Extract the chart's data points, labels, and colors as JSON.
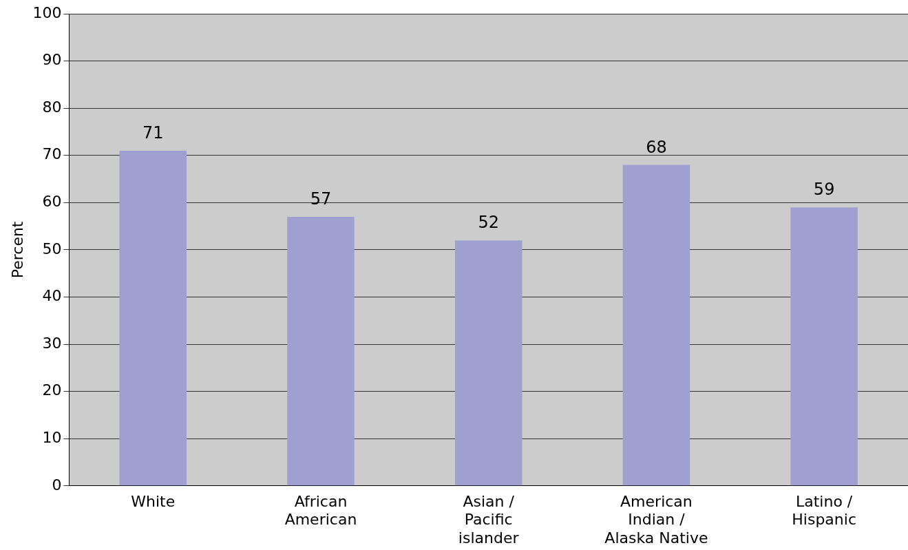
{
  "chart_data": {
    "type": "bar",
    "ylabel": "Percent",
    "categories": [
      "White",
      "African American",
      "Asian / Pacific islander",
      "American Indian / Alaska Native",
      "Latino / Hispanic"
    ],
    "values": [
      71,
      57,
      52,
      68,
      59
    ],
    "color": "#a0a0d0",
    "ylim": [
      0,
      100
    ],
    "yticks": [
      0,
      10,
      20,
      30,
      40,
      50,
      60,
      70,
      80,
      90,
      100
    ],
    "grid": "y",
    "data_labels": true,
    "legend": false
  }
}
